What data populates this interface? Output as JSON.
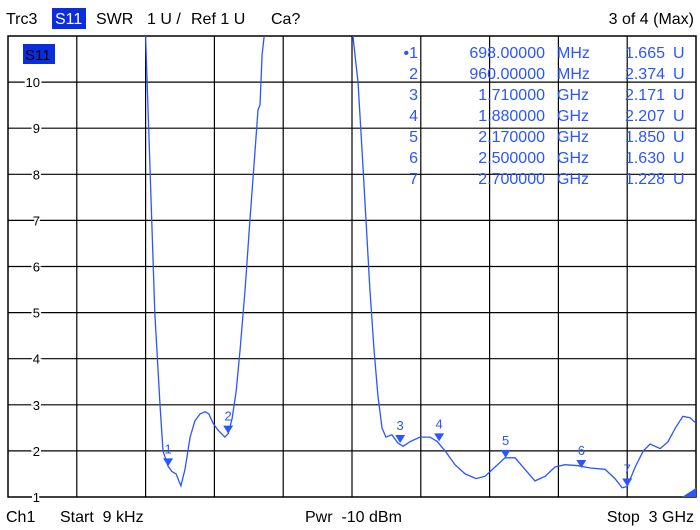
{
  "header": {
    "trace": "Trc3",
    "param": "S11",
    "format": "SWR",
    "scale": "1 U /",
    "ref": "Ref 1 U",
    "cal": "Ca?",
    "page": "3 of 4 (Max)"
  },
  "footer": {
    "channel": "Ch1",
    "start": "Start  9 kHz",
    "power": "Pwr  -10 dBm",
    "stop": "Stop  3 GHz"
  },
  "colors": {
    "trace": "#2a55ff",
    "highlight": "#0a2de0",
    "grid": "#000000"
  },
  "markers": [
    {
      "id": "1",
      "active": true,
      "freq": "698.00000",
      "unit": "MHz",
      "value": "1.665",
      "vunit": "U"
    },
    {
      "id": "2",
      "freq": "960.00000",
      "unit": "MHz",
      "value": "2.374",
      "vunit": "U"
    },
    {
      "id": "3",
      "freq": "1.710000",
      "unit": "GHz",
      "value": "2.171",
      "vunit": "U"
    },
    {
      "id": "4",
      "freq": "1.880000",
      "unit": "GHz",
      "value": "2.207",
      "vunit": "U"
    },
    {
      "id": "5",
      "freq": "2.170000",
      "unit": "GHz",
      "value": "1.850",
      "vunit": "U"
    },
    {
      "id": "6",
      "freq": "2.500000",
      "unit": "GHz",
      "value": "1.630",
      "vunit": "U"
    },
    {
      "id": "7",
      "freq": "2.700000",
      "unit": "GHz",
      "value": "1.228",
      "vunit": "U"
    }
  ],
  "chart_data": {
    "type": "line",
    "trace_label": "S11",
    "xlim": [
      9e-06,
      3.0
    ],
    "x_unit": "GHz",
    "ylim": [
      1,
      11
    ],
    "yticks": [
      "1",
      "2",
      "3",
      "4",
      "5",
      "6",
      "7",
      "8",
      "9",
      "10"
    ],
    "grid": true,
    "marker_points": [
      {
        "label": "1",
        "x": 0.698,
        "y": 1.665
      },
      {
        "label": "2",
        "x": 0.96,
        "y": 2.374
      },
      {
        "label": "3",
        "x": 1.71,
        "y": 2.171
      },
      {
        "label": "4",
        "x": 1.88,
        "y": 2.207
      },
      {
        "label": "5",
        "x": 2.17,
        "y": 1.85
      },
      {
        "label": "6",
        "x": 2.5,
        "y": 1.63
      },
      {
        "label": "7",
        "x": 2.7,
        "y": 1.228
      }
    ],
    "series": [
      {
        "x": [
          0.6,
          0.62,
          0.64,
          0.663,
          0.676,
          0.698,
          0.715,
          0.733,
          0.754,
          0.772,
          0.794,
          0.815,
          0.837,
          0.859,
          0.876,
          0.894,
          0.916,
          0.946,
          0.96,
          0.977,
          0.995,
          1.012,
          1.034,
          1.055,
          1.077,
          1.09,
          1.099,
          1.108,
          1.117,
          1.504,
          1.526,
          1.544,
          1.561,
          1.578,
          1.596,
          1.613,
          1.631,
          1.648,
          1.674,
          1.7,
          1.723,
          1.753,
          1.796,
          1.84,
          1.871,
          1.906,
          1.949,
          1.993,
          2.041,
          2.08,
          2.124,
          2.167,
          2.211,
          2.254,
          2.298,
          2.342,
          2.385,
          2.429,
          2.486,
          2.538,
          2.603,
          2.647,
          2.678,
          2.7,
          2.735,
          2.77,
          2.8,
          2.844,
          2.878,
          2.91,
          2.943,
          2.974,
          3.0
        ],
        "y": [
          11,
          8,
          5,
          3.0,
          2.0,
          1.665,
          1.55,
          1.5,
          1.24,
          1.6,
          2.3,
          2.65,
          2.8,
          2.85,
          2.8,
          2.6,
          2.45,
          2.3,
          2.374,
          2.7,
          3.3,
          4.2,
          5.5,
          7,
          8.5,
          9.4,
          9.5,
          10.6,
          11,
          11,
          10,
          8.5,
          7,
          5.5,
          4.2,
          3.2,
          2.5,
          2.3,
          2.35,
          2.171,
          2.1,
          2.2,
          2.3,
          2.3,
          2.207,
          2.0,
          1.7,
          1.5,
          1.4,
          1.45,
          1.65,
          1.85,
          1.85,
          1.6,
          1.35,
          1.45,
          1.65,
          1.7,
          1.68,
          1.63,
          1.6,
          1.4,
          1.2,
          1.228,
          1.65,
          2.0,
          2.15,
          2.05,
          2.2,
          2.5,
          2.75,
          2.72,
          2.6
        ]
      }
    ]
  }
}
